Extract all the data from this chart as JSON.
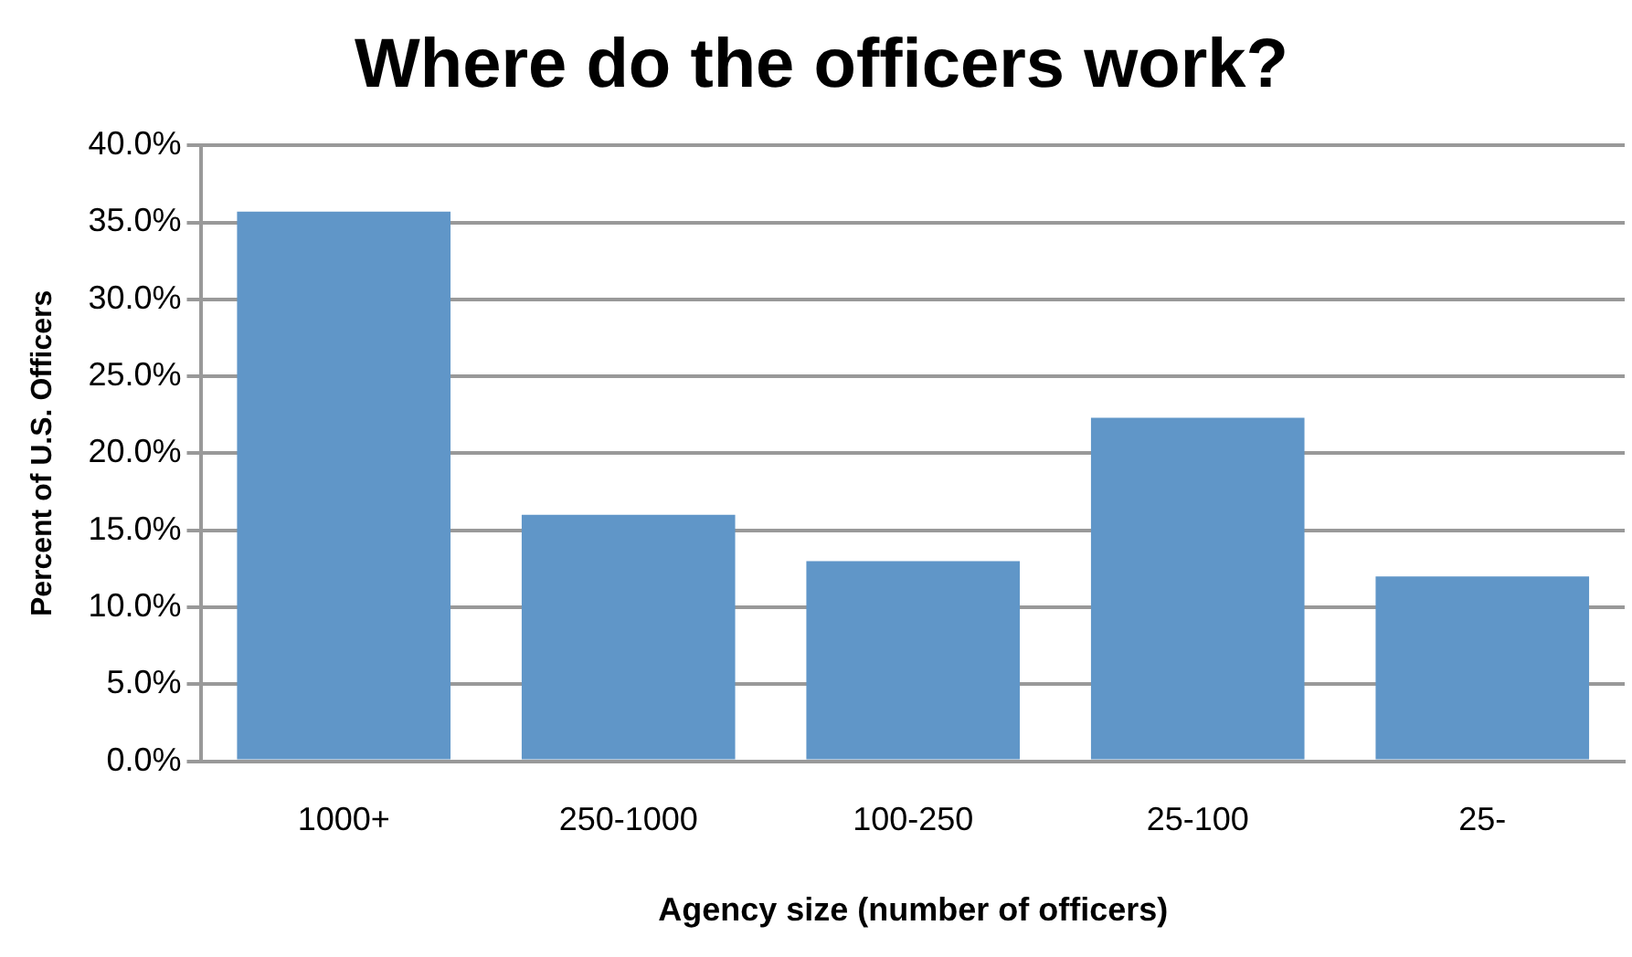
{
  "chart_data": {
    "type": "bar",
    "title": "Where do the officers work?",
    "xlabel": "Agency size (number of officers)",
    "ylabel": "Percent of U.S. Officers",
    "categories": [
      "1000+",
      "250-1000",
      "100-250",
      "25-100",
      "25-"
    ],
    "values": [
      35.7,
      16.0,
      13.0,
      22.3,
      12.0
    ],
    "color": "#6096c8",
    "ylim": [
      0,
      40
    ],
    "yticks": [
      {
        "value": 0,
        "label": "0.0%"
      },
      {
        "value": 5,
        "label": "5.0%"
      },
      {
        "value": 10,
        "label": "10.0%"
      },
      {
        "value": 15,
        "label": "15.0%"
      },
      {
        "value": 20,
        "label": "20.0%"
      },
      {
        "value": 25,
        "label": "25.0%"
      },
      {
        "value": 30,
        "label": "30.0%"
      },
      {
        "value": 35,
        "label": "35.0%"
      },
      {
        "value": 40,
        "label": "40.0%"
      }
    ],
    "grid": "y",
    "legend": false
  }
}
